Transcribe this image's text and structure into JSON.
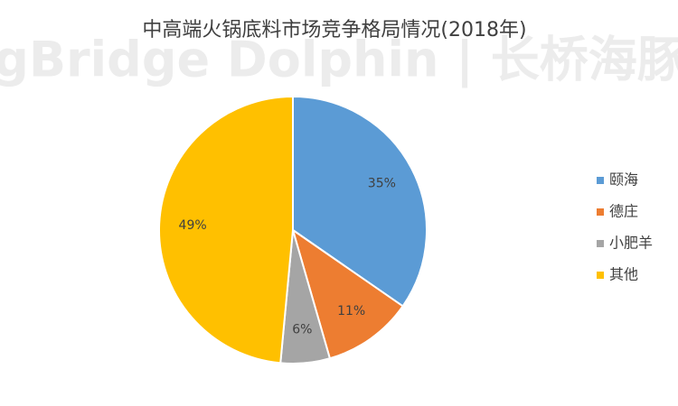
{
  "chart_data": {
    "type": "pie",
    "title": "中高端火锅底料市场竞争格局情况(2018年)",
    "watermark": "LongBridge Dolphin | 长桥海豚投研",
    "categories": [
      "颐海",
      "德庄",
      "小肥羊",
      "其他"
    ],
    "values": [
      35,
      11,
      6,
      49
    ],
    "value_labels": [
      "35%",
      "11%",
      "6%",
      "49%"
    ],
    "colors": [
      "#5b9bd5",
      "#ed7d31",
      "#a5a5a5",
      "#ffc000"
    ],
    "legend": "right"
  }
}
